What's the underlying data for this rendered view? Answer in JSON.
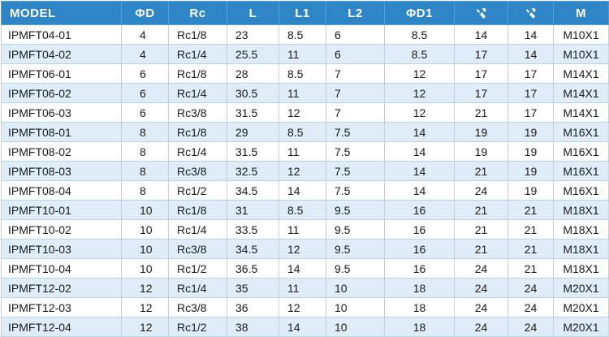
{
  "header": {
    "model": "MODEL",
    "d": "ΦD",
    "rc": "Rc",
    "l": "L",
    "l1": "L1",
    "l2": "L2",
    "d1": "ΦD1",
    "hex1_icon": "wrench-hex-icon",
    "hex2_icon": "wrench-hex-icon",
    "m": "M"
  },
  "rows": [
    [
      "IPMFT04-01",
      "4",
      "Rc1/8",
      "23",
      "8.5",
      "6",
      "8.5",
      "14",
      "14",
      "M10X1"
    ],
    [
      "IPMFT04-02",
      "4",
      "Rc1/4",
      "25.5",
      "11",
      "6",
      "8.5",
      "17",
      "14",
      "M10X1"
    ],
    [
      "IPMFT06-01",
      "6",
      "Rc1/8",
      "28",
      "8.5",
      "7",
      "12",
      "17",
      "17",
      "M14X1"
    ],
    [
      "IPMFT06-02",
      "6",
      "Rc1/4",
      "30.5",
      "11",
      "7",
      "12",
      "17",
      "17",
      "M14X1"
    ],
    [
      "IPMFT06-03",
      "6",
      "Rc3/8",
      "31.5",
      "12",
      "7",
      "12",
      "21",
      "17",
      "M14X1"
    ],
    [
      "IPMFT08-01",
      "8",
      "Rc1/8",
      "29",
      "8.5",
      "7.5",
      "14",
      "19",
      "19",
      "M16X1"
    ],
    [
      "IPMFT08-02",
      "8",
      "Rc1/4",
      "31.5",
      "11",
      "7.5",
      "14",
      "19",
      "19",
      "M16X1"
    ],
    [
      "IPMFT08-03",
      "8",
      "Rc3/8",
      "32.5",
      "12",
      "7.5",
      "14",
      "21",
      "19",
      "M16X1"
    ],
    [
      "IPMFT08-04",
      "8",
      "Rc1/2",
      "34.5",
      "14",
      "7.5",
      "14",
      "24",
      "19",
      "M16X1"
    ],
    [
      "IPMFT10-01",
      "10",
      "Rc1/8",
      "31",
      "8.5",
      "9.5",
      "16",
      "21",
      "21",
      "M18X1"
    ],
    [
      "IPMFT10-02",
      "10",
      "Rc1/4",
      "33.5",
      "11",
      "9.5",
      "16",
      "21",
      "21",
      "M18X1"
    ],
    [
      "IPMFT10-03",
      "10",
      "Rc3/8",
      "34.5",
      "12",
      "9.5",
      "16",
      "21",
      "21",
      "M18X1"
    ],
    [
      "IPMFT10-04",
      "10",
      "Rc1/2",
      "36.5",
      "14",
      "9.5",
      "16",
      "24",
      "21",
      "M18X1"
    ],
    [
      "IPMFT12-02",
      "12",
      "Rc1/4",
      "35",
      "11",
      "10",
      "18",
      "24",
      "24",
      "M20X1"
    ],
    [
      "IPMFT12-03",
      "12",
      "Rc3/8",
      "36",
      "12",
      "10",
      "18",
      "24",
      "24",
      "M20X1"
    ],
    [
      "IPMFT12-04",
      "12",
      "Rc1/2",
      "38",
      "14",
      "10",
      "18",
      "24",
      "24",
      "M20X1"
    ]
  ]
}
